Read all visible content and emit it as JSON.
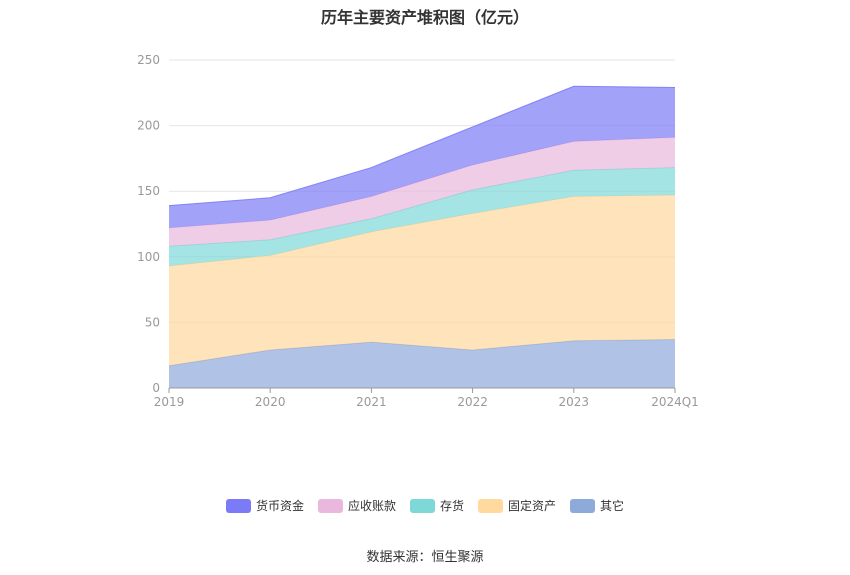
{
  "title": "历年主要资产堆积图（亿元）",
  "source": "数据来源：恒生聚源",
  "chart_data": {
    "type": "area",
    "stacked": true,
    "title": "历年主要资产堆积图（亿元）",
    "x": [
      "2019",
      "2020",
      "2021",
      "2022",
      "2023",
      "2024Q1"
    ],
    "ylim": [
      0,
      250
    ],
    "yticks": [
      "0",
      "50",
      "100",
      "150",
      "200",
      "250"
    ],
    "grid": true,
    "legend_position": "bottom",
    "series": [
      {
        "name": "其它",
        "color": "#8eaadb",
        "values": [
          17,
          29,
          35,
          29,
          36,
          37
        ]
      },
      {
        "name": "固定资产",
        "color": "#ffd99e",
        "values": [
          76,
          72,
          84,
          104,
          110,
          110
        ]
      },
      {
        "name": "存货",
        "color": "#7fd8d8",
        "values": [
          15,
          12,
          10,
          18,
          20,
          21
        ]
      },
      {
        "name": "应收账款",
        "color": "#e9b8dc",
        "values": [
          14,
          15,
          17,
          19,
          22,
          23
        ]
      },
      {
        "name": "货币资金",
        "color": "#7b7bf7",
        "values": [
          17,
          17,
          22,
          29,
          42,
          38
        ]
      }
    ],
    "legend_order": [
      "货币资金",
      "应收账款",
      "存货",
      "固定资产",
      "其它"
    ]
  }
}
